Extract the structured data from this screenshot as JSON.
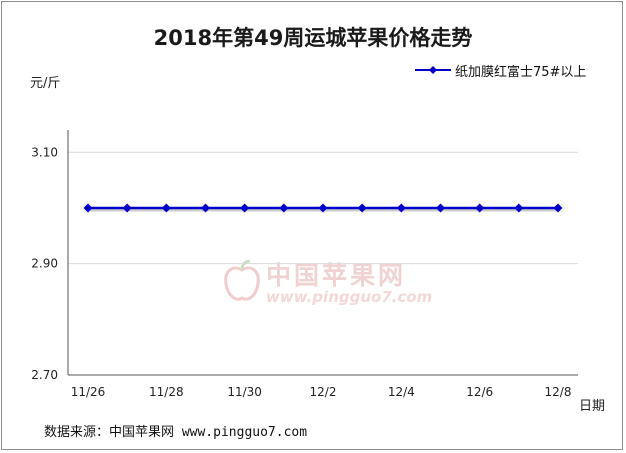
{
  "chart_data": {
    "type": "line",
    "title": "2018年第49周运城苹果价格走势",
    "ylabel": "元/斤",
    "xlabel": "日期",
    "categories": [
      "11/26",
      "11/27",
      "11/28",
      "11/29",
      "11/30",
      "12/1",
      "12/2",
      "12/3",
      "12/4",
      "12/5",
      "12/6",
      "12/7",
      "12/8"
    ],
    "x_tick_labels": [
      "11/26",
      "11/28",
      "11/30",
      "12/2",
      "12/4",
      "12/6",
      "12/8"
    ],
    "y_ticks": [
      "2.70",
      "2.90",
      "3.10"
    ],
    "ylim": [
      2.7,
      3.14
    ],
    "grid": true,
    "legend_position": "top-right",
    "series": [
      {
        "name": "纸加膜红富士75#以上",
        "color": "#0000cc",
        "values": [
          3.0,
          3.0,
          3.0,
          3.0,
          3.0,
          3.0,
          3.0,
          3.0,
          3.0,
          3.0,
          3.0,
          3.0,
          3.0
        ]
      }
    ]
  },
  "source_text": "数据来源：中国苹果网 www.pingguo7.com",
  "watermark": {
    "logo_text": "中国苹果网",
    "url_text": "www.pingguo7.com"
  }
}
